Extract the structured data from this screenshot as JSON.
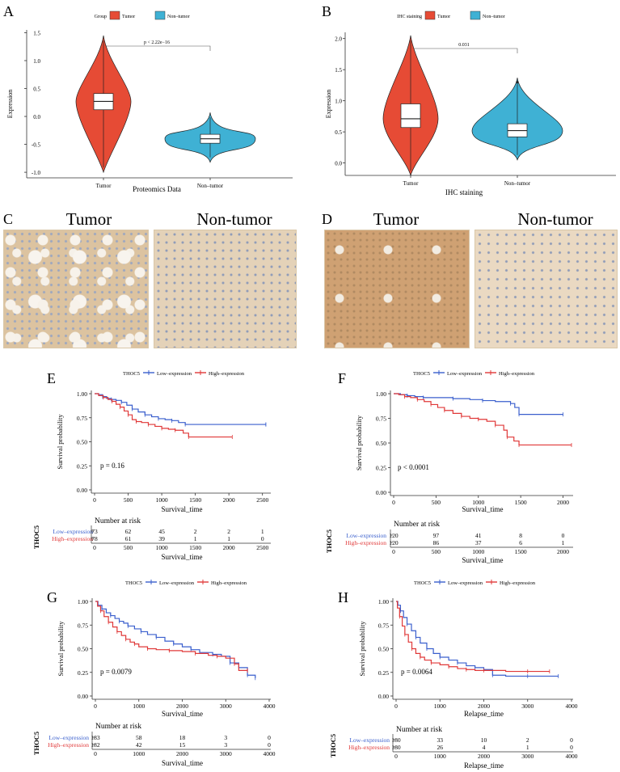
{
  "labels": {
    "A": "A",
    "B": "B",
    "C": "C",
    "D": "D",
    "E": "E",
    "F": "F",
    "G": "G",
    "H": "H"
  },
  "colors": {
    "tumor": "#e64b35",
    "nontumor": "#3fb1d4",
    "low": "#3a5fcd",
    "high": "#e03838"
  },
  "histology": {
    "C": {
      "left_title": "Tumor",
      "right_title": "Non-tumor"
    },
    "D": {
      "left_title": "Tumor",
      "right_title": "Non-tumor"
    }
  },
  "chart_data": [
    {
      "id": "A",
      "type": "violin",
      "legend_title": "Group",
      "legend": [
        "Tumor",
        "Non–tumor"
      ],
      "categories": [
        "Tumor",
        "Non–tumor"
      ],
      "xlabel": "Proteomics Data",
      "ylabel": "Expression",
      "ylim": [
        -1.1,
        1.55
      ],
      "yticks": [
        -1.0,
        -0.5,
        0.0,
        0.5,
        1.0,
        1.5
      ],
      "annotation": "p < 2.22e−16",
      "series": [
        {
          "name": "Tumor",
          "min": -1.0,
          "q1": 0.12,
          "median": 0.27,
          "q3": 0.41,
          "max": 1.45
        },
        {
          "name": "Non–tumor",
          "min": -0.82,
          "q1": -0.48,
          "median": -0.4,
          "q3": -0.32,
          "max": 0.07
        }
      ]
    },
    {
      "id": "B",
      "type": "violin",
      "legend_title": "IHC staining",
      "legend": [
        "Tumor",
        "Non–tumor"
      ],
      "categories": [
        "Tumor",
        "Non–tumor"
      ],
      "xlabel": "IHC staining",
      "ylabel": "Expression",
      "ylim": [
        -0.2,
        2.1
      ],
      "yticks": [
        0.0,
        0.5,
        1.0,
        1.5,
        2.0
      ],
      "annotation": "0.031",
      "series": [
        {
          "name": "Tumor",
          "min": -0.2,
          "q1": 0.57,
          "median": 0.71,
          "q3": 0.95,
          "max": 2.05
        },
        {
          "name": "Non–tumor",
          "min": 0.05,
          "q1": 0.42,
          "median": 0.52,
          "q3": 0.63,
          "max": 1.37,
          "outlier": 1.3
        }
      ]
    },
    {
      "id": "E",
      "type": "survival",
      "legend_title": "THOC5",
      "legend": [
        "Low–expression",
        "High–expression"
      ],
      "xlabel": "Survival_time",
      "ylabel": "Survival probability",
      "xlim": [
        0,
        2600
      ],
      "xticks": [
        0,
        500,
        1000,
        1500,
        2000,
        2500
      ],
      "ylim": [
        0,
        1
      ],
      "yticks": [
        "0.00",
        "0.25",
        "0.50",
        "0.75",
        "1.00"
      ],
      "pvalue": "p = 0.16",
      "risk_title": "Number at risk",
      "risk_ylabel": "THOC5",
      "risk_groups": [
        "Low–expression",
        "High–expression"
      ],
      "risk": [
        [
          73,
          62,
          45,
          2,
          2,
          1
        ],
        [
          78,
          61,
          39,
          1,
          1,
          0
        ]
      ],
      "series": [
        {
          "name": "Low–expression",
          "x": [
            0,
            60,
            120,
            180,
            250,
            320,
            400,
            480,
            560,
            650,
            750,
            850,
            950,
            1050,
            1150,
            1250,
            1350,
            1450,
            2550
          ],
          "y": [
            1.0,
            0.99,
            0.97,
            0.95,
            0.94,
            0.93,
            0.91,
            0.88,
            0.84,
            0.81,
            0.78,
            0.76,
            0.74,
            0.73,
            0.72,
            0.7,
            0.68,
            0.68,
            0.68
          ]
        },
        {
          "name": "High–expression",
          "x": [
            0,
            60,
            130,
            200,
            260,
            320,
            380,
            440,
            500,
            560,
            620,
            700,
            800,
            900,
            1000,
            1100,
            1200,
            1320,
            1400,
            2050
          ],
          "y": [
            1.0,
            0.98,
            0.96,
            0.94,
            0.92,
            0.89,
            0.86,
            0.82,
            0.78,
            0.73,
            0.71,
            0.7,
            0.68,
            0.66,
            0.64,
            0.63,
            0.62,
            0.59,
            0.55,
            0.55
          ]
        }
      ]
    },
    {
      "id": "F",
      "type": "survival",
      "legend_title": "THOC5",
      "legend": [
        "Low–expression",
        "High–expression"
      ],
      "xlabel": "Survival_time",
      "ylabel": "Survival probability",
      "xlim": [
        0,
        2100
      ],
      "xticks": [
        0,
        500,
        1000,
        1500,
        2000
      ],
      "ylim": [
        0,
        1
      ],
      "yticks": [
        "0.00",
        "0.25",
        "0.50",
        "0.75",
        "1.00"
      ],
      "pvalue": "p < 0.0001",
      "risk_title": "Number at risk",
      "risk_ylabel": "THOC5",
      "risk_groups": [
        "Low–expression",
        "High–expression"
      ],
      "risk": [
        [
          120,
          97,
          41,
          8,
          0
        ],
        [
          120,
          86,
          37,
          6,
          1
        ]
      ],
      "series": [
        {
          "name": "Low–expression",
          "x": [
            0,
            80,
            160,
            250,
            350,
            500,
            700,
            900,
            1050,
            1200,
            1380,
            1430,
            1480,
            2000
          ],
          "y": [
            1.0,
            0.99,
            0.98,
            0.97,
            0.96,
            0.96,
            0.95,
            0.94,
            0.93,
            0.92,
            0.9,
            0.86,
            0.79,
            0.79
          ]
        },
        {
          "name": "High–expression",
          "x": [
            0,
            60,
            130,
            200,
            280,
            360,
            440,
            520,
            600,
            700,
            800,
            900,
            1000,
            1100,
            1200,
            1300,
            1340,
            1420,
            1480,
            2100
          ],
          "y": [
            1.0,
            0.99,
            0.97,
            0.96,
            0.94,
            0.92,
            0.89,
            0.86,
            0.83,
            0.8,
            0.77,
            0.75,
            0.74,
            0.72,
            0.68,
            0.63,
            0.56,
            0.52,
            0.48,
            0.48
          ]
        }
      ]
    },
    {
      "id": "G",
      "type": "survival",
      "legend_title": "THOC5",
      "legend": [
        "Low–expression",
        "High–expression"
      ],
      "xlabel": "Survival_time",
      "ylabel": "Survival probability",
      "xlim": [
        0,
        4000
      ],
      "xticks": [
        0,
        1000,
        2000,
        3000,
        4000
      ],
      "ylim": [
        0,
        1
      ],
      "yticks": [
        "0.00",
        "0.25",
        "0.50",
        "0.75",
        "1.00"
      ],
      "pvalue": "p = 0.0079",
      "risk_title": "Number at risk",
      "risk_ylabel": "THOC5",
      "risk_groups": [
        "Low–expression",
        "High–expression"
      ],
      "risk": [
        [
          183,
          58,
          18,
          3,
          0
        ],
        [
          182,
          42,
          15,
          3,
          0
        ]
      ],
      "series": [
        {
          "name": "Low–expression",
          "x": [
            0,
            60,
            150,
            250,
            350,
            450,
            550,
            650,
            750,
            900,
            1050,
            1200,
            1400,
            1600,
            1800,
            2000,
            2200,
            2400,
            2700,
            2900,
            3100,
            3300,
            3500,
            3680
          ],
          "y": [
            1.0,
            0.96,
            0.92,
            0.88,
            0.85,
            0.82,
            0.79,
            0.77,
            0.74,
            0.71,
            0.68,
            0.65,
            0.62,
            0.58,
            0.55,
            0.52,
            0.49,
            0.46,
            0.44,
            0.42,
            0.35,
            0.3,
            0.22,
            0.19
          ]
        },
        {
          "name": "High–expression",
          "x": [
            0,
            50,
            120,
            200,
            300,
            400,
            500,
            600,
            700,
            800,
            900,
            1000,
            1200,
            1400,
            1700,
            2000,
            2300,
            2600,
            2800,
            3000,
            3200,
            3300,
            3500
          ],
          "y": [
            1.0,
            0.95,
            0.9,
            0.84,
            0.78,
            0.73,
            0.68,
            0.64,
            0.6,
            0.57,
            0.55,
            0.52,
            0.5,
            0.49,
            0.48,
            0.47,
            0.45,
            0.43,
            0.42,
            0.4,
            0.34,
            0.27,
            0.27
          ]
        }
      ]
    },
    {
      "id": "H",
      "type": "survival",
      "legend_title": "THOC5",
      "legend": [
        "Low–expression",
        "High–expression"
      ],
      "xlabel": "Relapse_time",
      "ylabel": "Survival probability",
      "xlim": [
        0,
        4000
      ],
      "xticks": [
        0,
        1000,
        2000,
        3000,
        4000
      ],
      "ylim": [
        0,
        1
      ],
      "yticks": [
        "0.00",
        "0.25",
        "0.50",
        "0.75",
        "1.00"
      ],
      "pvalue": "p = 0.0064",
      "risk_title": "Number at risk",
      "risk_ylabel": "THOC5",
      "risk_groups": [
        "Low–expression",
        "High–expression"
      ],
      "risk": [
        [
          180,
          33,
          10,
          2,
          0
        ],
        [
          180,
          26,
          4,
          1,
          0
        ]
      ],
      "series": [
        {
          "name": "Low–expression",
          "x": [
            0,
            40,
            100,
            170,
            250,
            350,
            450,
            550,
            700,
            850,
            1000,
            1200,
            1400,
            1600,
            1800,
            2000,
            2200,
            2500,
            3000,
            3700
          ],
          "y": [
            1.0,
            0.96,
            0.9,
            0.83,
            0.76,
            0.69,
            0.62,
            0.56,
            0.5,
            0.45,
            0.41,
            0.38,
            0.35,
            0.32,
            0.3,
            0.28,
            0.22,
            0.21,
            0.21,
            0.21
          ]
        },
        {
          "name": "High–expression",
          "x": [
            0,
            30,
            80,
            140,
            200,
            280,
            360,
            450,
            550,
            650,
            800,
            1000,
            1200,
            1400,
            1600,
            1800,
            2000,
            2500,
            3000,
            3500
          ],
          "y": [
            1.0,
            0.93,
            0.84,
            0.74,
            0.65,
            0.57,
            0.5,
            0.45,
            0.41,
            0.38,
            0.35,
            0.33,
            0.31,
            0.29,
            0.28,
            0.27,
            0.27,
            0.26,
            0.26,
            0.26
          ]
        }
      ]
    }
  ]
}
